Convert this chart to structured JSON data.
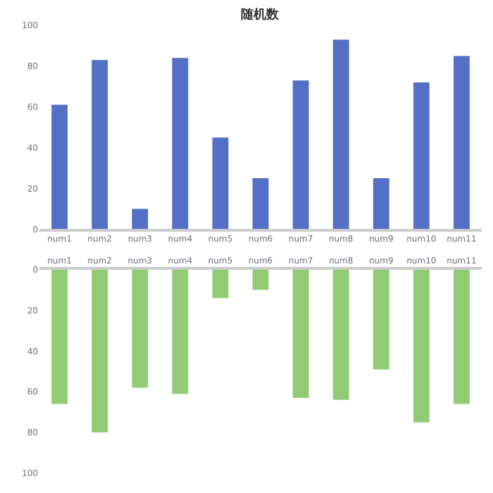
{
  "chart_data": [
    {
      "type": "bar",
      "title": "随机数",
      "categories": [
        "num1",
        "num2",
        "num3",
        "num4",
        "num5",
        "num6",
        "num7",
        "num8",
        "num9",
        "num10",
        "num11"
      ],
      "series": [
        {
          "color": "#5470c6",
          "values": [
            61,
            83,
            10,
            84,
            45,
            25,
            73,
            93,
            25,
            72,
            85
          ]
        }
      ],
      "ylim": [
        0,
        100
      ],
      "yticks": [
        0,
        20,
        40,
        60,
        80,
        100
      ],
      "grid": false
    },
    {
      "type": "bar",
      "categories": [
        "num1",
        "num2",
        "num3",
        "num4",
        "num5",
        "num6",
        "num7",
        "num8",
        "num9",
        "num10",
        "num11"
      ],
      "series": [
        {
          "color": "#91cc75",
          "values": [
            66,
            80,
            58,
            61,
            14,
            10,
            63,
            64,
            49,
            75,
            66
          ]
        }
      ],
      "ylim": [
        100,
        0
      ],
      "yticks": [
        0,
        20,
        40,
        60,
        80,
        100
      ],
      "grid": false
    }
  ]
}
